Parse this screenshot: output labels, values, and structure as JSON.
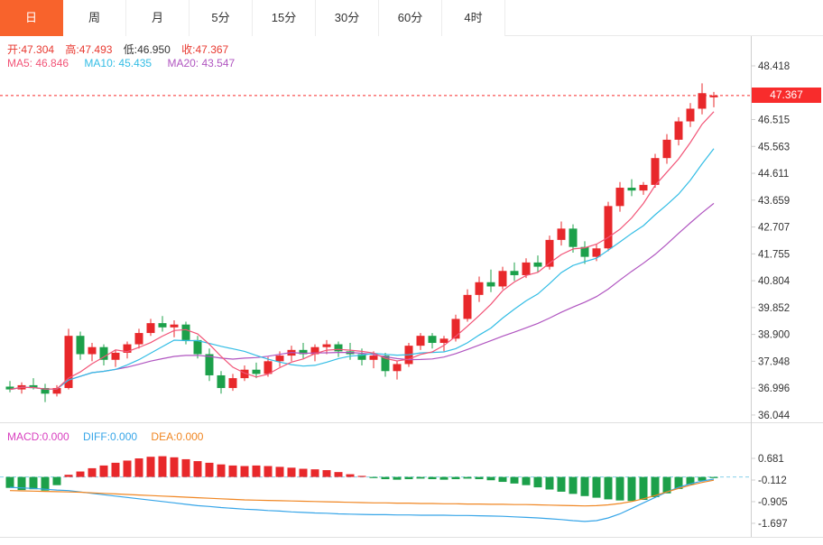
{
  "tabs": [
    {
      "id": "day",
      "label": "日",
      "active": true
    },
    {
      "id": "week",
      "label": "周",
      "active": false
    },
    {
      "id": "month",
      "label": "月",
      "active": false
    },
    {
      "id": "5min",
      "label": "5分",
      "active": false
    },
    {
      "id": "15min",
      "label": "15分",
      "active": false
    },
    {
      "id": "30min",
      "label": "30分",
      "active": false
    },
    {
      "id": "60min",
      "label": "60分",
      "active": false
    },
    {
      "id": "4hour",
      "label": "4时",
      "active": false
    }
  ],
  "info": {
    "open": "开:47.304",
    "high": "高:47.493",
    "low": "低:46.950",
    "close": "收:47.367",
    "ma5": "MA5: 46.846",
    "ma10": "MA10: 45.435",
    "ma20": "MA20: 43.547"
  },
  "macd_info": {
    "macd": "MACD:0.000",
    "diff": "DIFF:0.000",
    "dea": "DEA:0.000"
  },
  "price_tag": {
    "value": "47.367"
  },
  "axes": {
    "main_ticks": [
      "48.418",
      "46.515",
      "45.563",
      "44.611",
      "43.659",
      "42.707",
      "41.755",
      "40.804",
      "39.852",
      "38.900",
      "37.948",
      "36.996",
      "36.044"
    ],
    "macd_ticks": [
      "0.681",
      "-0.112",
      "-0.905",
      "-1.697"
    ]
  },
  "colors": {
    "up": "#e8282b",
    "down": "#1ca04a",
    "ma5": "#f25477",
    "ma10": "#33bde5",
    "ma20": "#b055c0",
    "diff": "#36a5e8",
    "dea": "#f08622",
    "price_line": "#f82c2c",
    "macd_zero": "#85cfea",
    "axis_line": "#cfcfcf",
    "divider": "#e0e0e0",
    "tab_active_bg": "#f8632c"
  },
  "chart_data": {
    "type": "candlestick",
    "panels": [
      {
        "name": "price",
        "type": "candlestick",
        "current_price": 47.367,
        "last_candle": {
          "open": 47.304,
          "high": 47.493,
          "low": 46.95,
          "close": 47.367
        },
        "ma_overlays": [
          {
            "name": "MA5",
            "period": 5,
            "last_value": 46.846
          },
          {
            "name": "MA10",
            "period": 10,
            "last_value": 45.435
          },
          {
            "name": "MA20",
            "period": 20,
            "last_value": 43.547
          }
        ],
        "y_ticks": [
          48.418,
          46.515,
          45.563,
          44.611,
          43.659,
          42.707,
          41.755,
          40.804,
          39.852,
          38.9,
          37.948,
          36.996,
          36.044
        ],
        "ohlc": [
          [
            37.05,
            37.25,
            36.85,
            36.95
          ],
          [
            36.95,
            37.2,
            36.8,
            37.1
          ],
          [
            37.1,
            37.35,
            36.95,
            37.0
          ],
          [
            37.0,
            37.15,
            36.5,
            36.8
          ],
          [
            36.8,
            37.1,
            36.7,
            37.0
          ],
          [
            37.0,
            39.1,
            36.95,
            38.85
          ],
          [
            38.85,
            39.0,
            38.0,
            38.2
          ],
          [
            38.2,
            38.6,
            37.95,
            38.45
          ],
          [
            38.45,
            38.55,
            37.8,
            38.0
          ],
          [
            38.0,
            38.35,
            37.75,
            38.25
          ],
          [
            38.25,
            38.65,
            38.05,
            38.55
          ],
          [
            38.55,
            39.1,
            38.4,
            38.95
          ],
          [
            38.95,
            39.45,
            38.85,
            39.3
          ],
          [
            39.3,
            39.55,
            39.0,
            39.15
          ],
          [
            39.15,
            39.4,
            38.8,
            39.25
          ],
          [
            39.25,
            39.35,
            38.55,
            38.7
          ],
          [
            38.7,
            38.85,
            38.05,
            38.2
          ],
          [
            38.2,
            38.4,
            37.25,
            37.45
          ],
          [
            37.45,
            37.6,
            36.8,
            37.0
          ],
          [
            37.0,
            37.5,
            36.9,
            37.35
          ],
          [
            37.35,
            37.8,
            37.25,
            37.65
          ],
          [
            37.65,
            37.9,
            37.35,
            37.5
          ],
          [
            37.5,
            38.1,
            37.4,
            37.95
          ],
          [
            37.95,
            38.3,
            37.75,
            38.15
          ],
          [
            38.15,
            38.5,
            37.95,
            38.35
          ],
          [
            38.35,
            38.6,
            38.05,
            38.2
          ],
          [
            38.2,
            38.55,
            37.95,
            38.45
          ],
          [
            38.45,
            38.7,
            38.2,
            38.55
          ],
          [
            38.55,
            38.65,
            38.1,
            38.3
          ],
          [
            38.3,
            38.6,
            38.0,
            38.2
          ],
          [
            38.2,
            38.4,
            37.8,
            38.0
          ],
          [
            38.0,
            38.3,
            37.7,
            38.15
          ],
          [
            38.15,
            38.25,
            37.4,
            37.6
          ],
          [
            37.6,
            37.95,
            37.3,
            37.85
          ],
          [
            37.85,
            38.6,
            37.75,
            38.5
          ],
          [
            38.5,
            38.95,
            38.35,
            38.85
          ],
          [
            38.85,
            38.95,
            38.4,
            38.6
          ],
          [
            38.6,
            38.85,
            38.3,
            38.75
          ],
          [
            38.75,
            39.6,
            38.65,
            39.45
          ],
          [
            39.45,
            40.5,
            39.35,
            40.3
          ],
          [
            40.3,
            40.95,
            40.05,
            40.75
          ],
          [
            40.75,
            41.2,
            40.4,
            40.6
          ],
          [
            40.6,
            41.3,
            40.5,
            41.15
          ],
          [
            41.15,
            41.45,
            40.8,
            41.0
          ],
          [
            41.0,
            41.6,
            40.9,
            41.45
          ],
          [
            41.45,
            41.7,
            41.1,
            41.3
          ],
          [
            41.3,
            42.4,
            41.2,
            42.25
          ],
          [
            42.25,
            42.9,
            42.05,
            42.65
          ],
          [
            42.65,
            42.8,
            41.8,
            42.0
          ],
          [
            42.0,
            42.2,
            41.4,
            41.65
          ],
          [
            41.65,
            42.1,
            41.5,
            41.95
          ],
          [
            41.95,
            43.6,
            41.85,
            43.45
          ],
          [
            43.45,
            44.3,
            43.25,
            44.1
          ],
          [
            44.1,
            44.4,
            43.8,
            44.0
          ],
          [
            44.0,
            44.3,
            43.85,
            44.2
          ],
          [
            44.2,
            45.3,
            44.1,
            45.15
          ],
          [
            45.15,
            46.0,
            44.95,
            45.8
          ],
          [
            45.8,
            46.6,
            45.6,
            46.45
          ],
          [
            46.45,
            47.1,
            46.25,
            46.9
          ],
          [
            46.9,
            47.8,
            46.7,
            47.45
          ],
          [
            47.304,
            47.493,
            46.95,
            47.367
          ]
        ]
      },
      {
        "name": "macd",
        "type": "bar",
        "values": {
          "macd": 0.0,
          "diff": 0.0,
          "dea": 0.0
        },
        "y_ticks": [
          0.681,
          -0.112,
          -0.905,
          -1.697
        ],
        "histogram": [
          -0.4,
          -0.48,
          -0.45,
          -0.5,
          -0.3,
          0.08,
          0.2,
          0.32,
          0.42,
          0.52,
          0.6,
          0.68,
          0.74,
          0.76,
          0.72,
          0.65,
          0.58,
          0.52,
          0.46,
          0.42,
          0.4,
          0.42,
          0.4,
          0.37,
          0.34,
          0.3,
          0.28,
          0.25,
          0.18,
          0.1,
          0.04,
          -0.04,
          -0.08,
          -0.1,
          -0.08,
          -0.06,
          -0.08,
          -0.1,
          -0.08,
          -0.06,
          -0.08,
          -0.12,
          -0.18,
          -0.24,
          -0.3,
          -0.38,
          -0.46,
          -0.54,
          -0.62,
          -0.7,
          -0.76,
          -0.82,
          -0.86,
          -0.88,
          -0.84,
          -0.74,
          -0.6,
          -0.44,
          -0.28,
          -0.14,
          -0.04
        ],
        "diff": [
          -0.38,
          -0.4,
          -0.42,
          -0.45,
          -0.48,
          -0.5,
          -0.55,
          -0.6,
          -0.65,
          -0.7,
          -0.75,
          -0.8,
          -0.85,
          -0.9,
          -0.95,
          -1.0,
          -1.05,
          -1.08,
          -1.12,
          -1.15,
          -1.18,
          -1.2,
          -1.23,
          -1.25,
          -1.28,
          -1.3,
          -1.32,
          -1.33,
          -1.35,
          -1.36,
          -1.37,
          -1.38,
          -1.38,
          -1.39,
          -1.39,
          -1.4,
          -1.4,
          -1.4,
          -1.41,
          -1.41,
          -1.42,
          -1.43,
          -1.44,
          -1.46,
          -1.48,
          -1.5,
          -1.53,
          -1.56,
          -1.6,
          -1.63,
          -1.6,
          -1.5,
          -1.35,
          -1.15,
          -0.95,
          -0.75,
          -0.55,
          -0.38,
          -0.25,
          -0.15,
          -0.08
        ],
        "dea": [
          -0.5,
          -0.51,
          -0.52,
          -0.53,
          -0.54,
          -0.55,
          -0.56,
          -0.58,
          -0.6,
          -0.62,
          -0.64,
          -0.66,
          -0.68,
          -0.7,
          -0.72,
          -0.74,
          -0.76,
          -0.78,
          -0.8,
          -0.82,
          -0.84,
          -0.85,
          -0.86,
          -0.87,
          -0.88,
          -0.89,
          -0.9,
          -0.91,
          -0.92,
          -0.93,
          -0.94,
          -0.95,
          -0.95,
          -0.96,
          -0.96,
          -0.97,
          -0.97,
          -0.98,
          -0.98,
          -0.99,
          -0.99,
          -1.0,
          -1.0,
          -1.01,
          -1.01,
          -1.02,
          -1.03,
          -1.04,
          -1.05,
          -1.06,
          -1.05,
          -1.02,
          -0.97,
          -0.9,
          -0.8,
          -0.68,
          -0.55,
          -0.42,
          -0.3,
          -0.2,
          -0.12
        ]
      }
    ]
  }
}
